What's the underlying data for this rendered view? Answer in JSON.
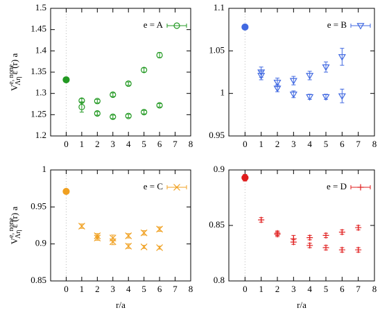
{
  "chart_data": [
    {
      "type": "scatter",
      "xlim": [
        -1,
        8
      ],
      "xticks": [
        0,
        1,
        2,
        3,
        4,
        5,
        6,
        7,
        8
      ],
      "ylim": [
        1.2,
        1.5
      ],
      "yticks": [
        1.2,
        1.25,
        1.3,
        1.35,
        1.4,
        1.45,
        1.5
      ],
      "vlines": [
        0
      ],
      "y_label": {
        "main": "V",
        "sup": "e, none",
        "sub": "Λη",
        "tail": "ε (r) a"
      },
      "series": [
        {
          "name": "e = A",
          "color": "#229922",
          "marker": "circle",
          "x": [
            1,
            2,
            3,
            4,
            5,
            6
          ],
          "values": [
            1.283,
            1.282,
            1.297,
            1.323,
            1.355,
            1.39
          ],
          "errors": [
            0.005,
            0.004,
            0.004,
            0.004,
            0.005,
            0.006
          ]
        },
        {
          "color": "#229922",
          "marker": "circle",
          "x": [
            1,
            2,
            3,
            4,
            5,
            6
          ],
          "values": [
            1.268,
            1.253,
            1.245,
            1.247,
            1.256,
            1.272
          ],
          "errors": [
            0.012,
            0.004,
            0.004,
            0.004,
            0.004,
            0.004
          ]
        },
        {
          "color": "#229922",
          "marker": "dot",
          "x": [
            0
          ],
          "values": [
            1.332
          ],
          "errors": [
            0.003
          ]
        }
      ]
    },
    {
      "type": "scatter",
      "xlim": [
        -1,
        8
      ],
      "xticks": [
        0,
        1,
        2,
        3,
        4,
        5,
        6,
        7,
        8
      ],
      "ylim": [
        0.95,
        1.1
      ],
      "yticks": [
        0.95,
        1,
        1.05,
        1.1
      ],
      "vlines": [
        0
      ],
      "series": [
        {
          "name": "e = B",
          "color": "#4169e1",
          "marker": "triangle",
          "x": [
            1,
            2,
            3,
            4,
            5,
            6
          ],
          "values": [
            1.025,
            1.013,
            1.015,
            1.021,
            1.031,
            1.043
          ],
          "errors": [
            0.006,
            0.005,
            0.005,
            0.005,
            0.006,
            0.01
          ]
        },
        {
          "color": "#4169e1",
          "marker": "triangle",
          "x": [
            1,
            2,
            3,
            4,
            5,
            6
          ],
          "values": [
            1.021,
            1.006,
            0.999,
            0.996,
            0.996,
            0.997
          ],
          "errors": [
            0.005,
            0.004,
            0.004,
            0.003,
            0.003,
            0.008
          ]
        },
        {
          "color": "#4169e1",
          "marker": "dot",
          "x": [
            0
          ],
          "values": [
            1.078
          ],
          "errors": [
            0.002
          ]
        }
      ]
    },
    {
      "type": "scatter",
      "xlim": [
        -1,
        8
      ],
      "xticks": [
        0,
        1,
        2,
        3,
        4,
        5,
        6,
        7,
        8
      ],
      "ylim": [
        0.85,
        1
      ],
      "yticks": [
        0.85,
        0.9,
        0.95,
        1
      ],
      "vlines": [
        0
      ],
      "x_label": "r/a",
      "y_label": {
        "main": "V",
        "sup": "e, none",
        "sub": "Λη",
        "tail": "ε (r) a"
      },
      "series": [
        {
          "name": "e = C",
          "color": "#f0a020",
          "marker": "cross",
          "x": [
            1,
            2,
            3,
            4,
            5,
            6
          ],
          "values": [
            0.924,
            0.911,
            0.908,
            0.911,
            0.915,
            0.92
          ],
          "errors": [
            0.003,
            0.003,
            0.004,
            0.003,
            0.003,
            0.003
          ]
        },
        {
          "color": "#f0a020",
          "marker": "cross",
          "x": [
            2,
            3,
            4,
            5,
            6
          ],
          "values": [
            0.908,
            0.903,
            0.897,
            0.896,
            0.895
          ],
          "errors": [
            0.003,
            0.004,
            0.003,
            0.002,
            0.002
          ]
        },
        {
          "color": "#f0a020",
          "marker": "dot",
          "x": [
            0
          ],
          "values": [
            0.971
          ],
          "errors": [
            0.002
          ]
        }
      ]
    },
    {
      "type": "scatter",
      "xlim": [
        -1,
        8
      ],
      "xticks": [
        0,
        1,
        2,
        3,
        4,
        5,
        6,
        7,
        8
      ],
      "ylim": [
        0.8,
        0.9
      ],
      "yticks": [
        0.8,
        0.85,
        0.9
      ],
      "vlines": [
        0
      ],
      "x_label": "r/a",
      "series": [
        {
          "name": "e = D",
          "color": "#e01c1c",
          "marker": "plus",
          "x": [
            1,
            2,
            3,
            4,
            5,
            6,
            7
          ],
          "values": [
            0.855,
            0.843,
            0.838,
            0.839,
            0.841,
            0.844,
            0.848
          ],
          "errors": [
            0.002,
            0.002,
            0.003,
            0.002,
            0.002,
            0.002,
            0.002
          ]
        },
        {
          "color": "#e01c1c",
          "marker": "plus",
          "x": [
            2,
            3,
            4,
            5,
            6,
            7
          ],
          "values": [
            0.842,
            0.835,
            0.832,
            0.83,
            0.828,
            0.828
          ],
          "errors": [
            0.002,
            0.002,
            0.002,
            0.002,
            0.002,
            0.002
          ]
        },
        {
          "color": "#e01c1c",
          "marker": "dot",
          "x": [
            0
          ],
          "values": [
            0.893
          ],
          "errors": [
            0.003
          ]
        }
      ]
    }
  ]
}
